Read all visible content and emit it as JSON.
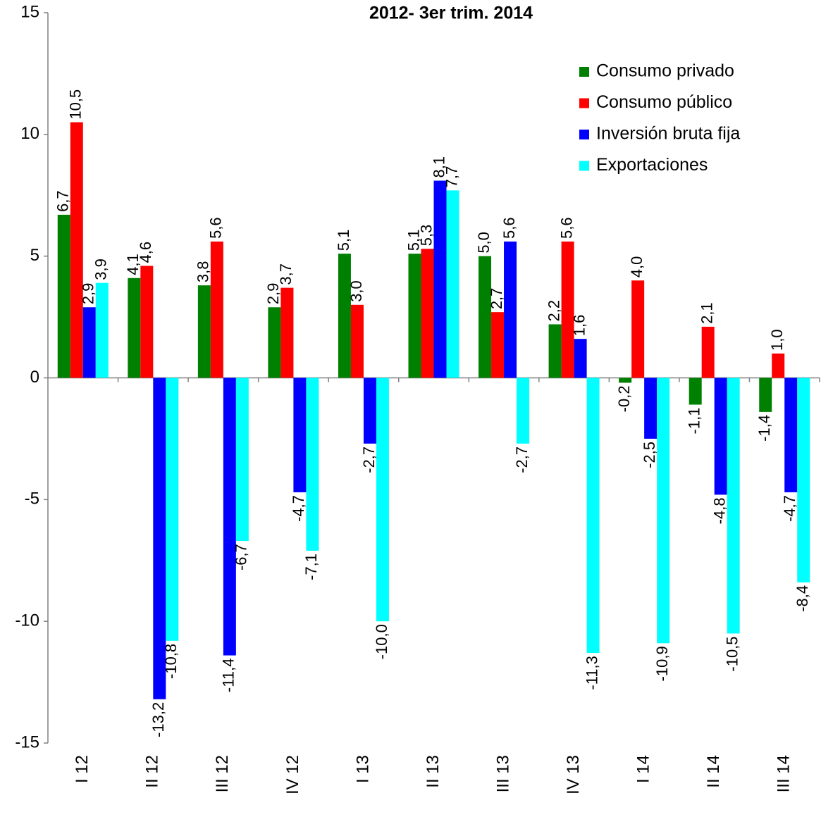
{
  "chart_data": {
    "type": "bar",
    "title": "2012- 3er trim. 2014",
    "categories": [
      "I 12",
      "II 12",
      "III 12",
      "IV 12",
      "I 13",
      "II 13",
      "III 13",
      "IV 13",
      "I 14",
      "II 14",
      "III 14"
    ],
    "series": [
      {
        "name": "Consumo privado",
        "color": "#008000",
        "values": [
          6.7,
          4.1,
          3.8,
          2.9,
          5.1,
          5.1,
          5.0,
          2.2,
          -0.2,
          -1.1,
          -1.4
        ],
        "value_labels": [
          "6,7",
          "4,1",
          "3,8",
          "2,9",
          "5,1",
          "5,1",
          "5,0",
          "2,2",
          "-0,2",
          "-1,1",
          "-1,4"
        ]
      },
      {
        "name": "Consumo público",
        "color": "#ff0000",
        "values": [
          10.5,
          4.6,
          5.6,
          3.7,
          3.0,
          5.3,
          2.7,
          5.6,
          4.0,
          2.1,
          1.0
        ],
        "value_labels": [
          "10,5",
          "4,6",
          "5,6",
          "3,7",
          "3,0",
          "5,3",
          "2,7",
          "5,6",
          "4,0",
          "2,1",
          "1,0"
        ]
      },
      {
        "name": "Inversión bruta fija",
        "color": "#0000ff",
        "values": [
          2.9,
          -13.2,
          -11.4,
          -4.7,
          -2.7,
          8.1,
          5.6,
          1.6,
          -2.5,
          -4.8,
          -4.7
        ],
        "value_labels": [
          "2,9",
          "-13,2",
          "-11,4",
          "-4,7",
          "-2,7",
          "8,1",
          "5,6",
          "1,6",
          "-2,5",
          "-4,8",
          "-4,7"
        ]
      },
      {
        "name": "Exportaciones",
        "color": "#00ffff",
        "values": [
          3.9,
          -10.8,
          -6.7,
          -7.1,
          -10.0,
          7.7,
          -2.7,
          -11.3,
          -10.9,
          -10.5,
          -8.4
        ],
        "value_labels": [
          "3,9",
          "-10,8",
          "-6,7",
          "-7,1",
          "-10,0",
          "7,7",
          "-2,7",
          "-11,3",
          "-10,9",
          "-10,5",
          "-8,4"
        ]
      }
    ],
    "ylim": [
      -15,
      15
    ],
    "yticks": [
      -15,
      -10,
      -5,
      0,
      5,
      10,
      15
    ],
    "legend": "upper-right"
  }
}
